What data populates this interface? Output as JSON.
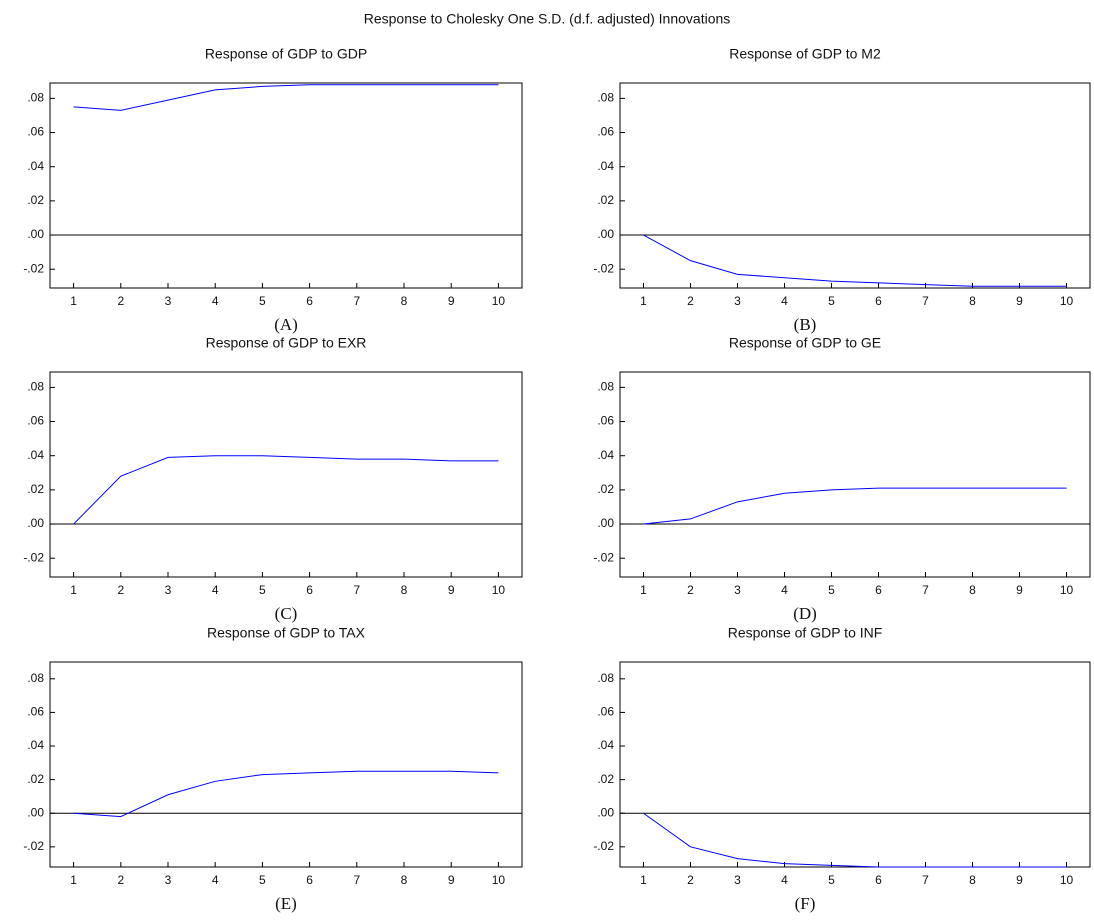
{
  "title": "Response to Cholesky One S.D. (d.f. adjusted) Innovations",
  "chart_data": [
    {
      "type": "line",
      "title": "Response of GDP to GDP",
      "caption": "(A)",
      "x": [
        1,
        2,
        3,
        4,
        5,
        6,
        7,
        8,
        9,
        10
      ],
      "values": [
        0.075,
        0.073,
        0.079,
        0.085,
        0.087,
        0.088,
        0.088,
        0.088,
        0.088,
        0.088
      ],
      "color": "#0000ff",
      "xlim": [
        0.5,
        10.5
      ],
      "xticks": [
        1,
        2,
        3,
        4,
        5,
        6,
        7,
        8,
        9,
        10
      ],
      "ylim": [
        -0.031,
        0.089
      ],
      "yticks": [
        {
          "value": -0.02,
          "label": "-.02"
        },
        {
          "value": 0,
          "label": ".00"
        },
        {
          "value": 0.02,
          "label": ".02"
        },
        {
          "value": 0.04,
          "label": ".04"
        },
        {
          "value": 0.06,
          "label": ".06"
        },
        {
          "value": 0.08,
          "label": ".08"
        }
      ],
      "zero_line": true
    },
    {
      "type": "line",
      "title": "Response of GDP to M2",
      "caption": "(B)",
      "x": [
        1,
        2,
        3,
        4,
        5,
        6,
        7,
        8,
        9,
        10
      ],
      "values": [
        0,
        -0.015,
        -0.023,
        -0.025,
        -0.027,
        -0.028,
        -0.029,
        -0.03,
        -0.03,
        -0.03
      ],
      "color": "#0000ff",
      "xlim": [
        0.5,
        10.5
      ],
      "xticks": [
        1,
        2,
        3,
        4,
        5,
        6,
        7,
        8,
        9,
        10
      ],
      "ylim": [
        -0.031,
        0.089
      ],
      "yticks": [
        {
          "value": -0.02,
          "label": "-.02"
        },
        {
          "value": 0,
          "label": ".00"
        },
        {
          "value": 0.02,
          "label": ".02"
        },
        {
          "value": 0.04,
          "label": ".04"
        },
        {
          "value": 0.06,
          "label": ".06"
        },
        {
          "value": 0.08,
          "label": ".08"
        }
      ],
      "zero_line": true
    },
    {
      "type": "line",
      "title": "Response of GDP to EXR",
      "caption": "(C)",
      "x": [
        1,
        2,
        3,
        4,
        5,
        6,
        7,
        8,
        9,
        10
      ],
      "values": [
        0,
        0.028,
        0.039,
        0.04,
        0.04,
        0.039,
        0.038,
        0.038,
        0.037,
        0.037
      ],
      "color": "#0000ff",
      "xlim": [
        0.5,
        10.5
      ],
      "xticks": [
        1,
        2,
        3,
        4,
        5,
        6,
        7,
        8,
        9,
        10
      ],
      "ylim": [
        -0.031,
        0.089
      ],
      "yticks": [
        {
          "value": -0.02,
          "label": "-.02"
        },
        {
          "value": 0,
          "label": ".00"
        },
        {
          "value": 0.02,
          "label": ".02"
        },
        {
          "value": 0.04,
          "label": ".04"
        },
        {
          "value": 0.06,
          "label": ".06"
        },
        {
          "value": 0.08,
          "label": ".08"
        }
      ],
      "zero_line": true
    },
    {
      "type": "line",
      "title": "Response of GDP to GE",
      "caption": "(D)",
      "x": [
        1,
        2,
        3,
        4,
        5,
        6,
        7,
        8,
        9,
        10
      ],
      "values": [
        0,
        0.003,
        0.013,
        0.018,
        0.02,
        0.021,
        0.021,
        0.021,
        0.021,
        0.021
      ],
      "color": "#0000ff",
      "xlim": [
        0.5,
        10.5
      ],
      "xticks": [
        1,
        2,
        3,
        4,
        5,
        6,
        7,
        8,
        9,
        10
      ],
      "ylim": [
        -0.031,
        0.089
      ],
      "yticks": [
        {
          "value": -0.02,
          "label": "-.02"
        },
        {
          "value": 0,
          "label": ".00"
        },
        {
          "value": 0.02,
          "label": ".02"
        },
        {
          "value": 0.04,
          "label": ".04"
        },
        {
          "value": 0.06,
          "label": ".06"
        },
        {
          "value": 0.08,
          "label": ".08"
        }
      ],
      "zero_line": true
    },
    {
      "type": "line",
      "title": "Response of GDP to TAX",
      "caption": "(E)",
      "x": [
        1,
        2,
        3,
        4,
        5,
        6,
        7,
        8,
        9,
        10
      ],
      "values": [
        0,
        -0.002,
        0.011,
        0.019,
        0.023,
        0.024,
        0.025,
        0.025,
        0.025,
        0.024
      ],
      "color": "#0000ff",
      "xlim": [
        0.5,
        10.5
      ],
      "xticks": [
        1,
        2,
        3,
        4,
        5,
        6,
        7,
        8,
        9,
        10
      ],
      "ylim": [
        -0.032,
        0.09
      ],
      "yticks": [
        {
          "value": -0.02,
          "label": "-.02"
        },
        {
          "value": 0,
          "label": ".00"
        },
        {
          "value": 0.02,
          "label": ".02"
        },
        {
          "value": 0.04,
          "label": ".04"
        },
        {
          "value": 0.06,
          "label": ".06"
        },
        {
          "value": 0.08,
          "label": ".08"
        }
      ],
      "zero_line": true
    },
    {
      "type": "line",
      "title": "Response of GDP to INF",
      "caption": "(F)",
      "x": [
        1,
        2,
        3,
        4,
        5,
        6,
        7,
        8,
        9,
        10
      ],
      "values": [
        0,
        -0.02,
        -0.027,
        -0.03,
        -0.031,
        -0.032,
        -0.032,
        -0.032,
        -0.032,
        -0.032
      ],
      "color": "#0000ff",
      "xlim": [
        0.5,
        10.5
      ],
      "xticks": [
        1,
        2,
        3,
        4,
        5,
        6,
        7,
        8,
        9,
        10
      ],
      "ylim": [
        -0.032,
        0.09
      ],
      "yticks": [
        {
          "value": -0.02,
          "label": "-.02"
        },
        {
          "value": 0,
          "label": ".00"
        },
        {
          "value": 0.02,
          "label": ".02"
        },
        {
          "value": 0.04,
          "label": ".04"
        },
        {
          "value": 0.06,
          "label": ".06"
        },
        {
          "value": 0.08,
          "label": ".08"
        }
      ],
      "zero_line": true
    }
  ]
}
